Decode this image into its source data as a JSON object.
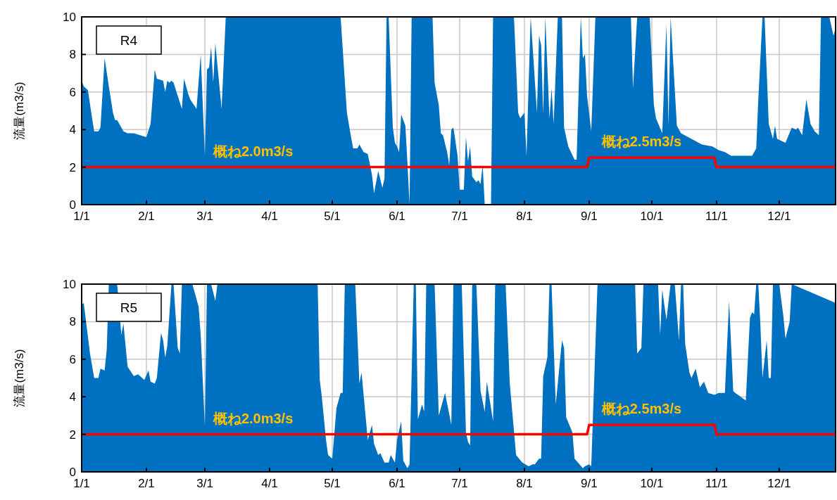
{
  "chart_data": [
    {
      "type": "area",
      "title": "R4",
      "ylabel": "流量(m3/s)",
      "xlim": [
        "--01-01",
        "--12-28"
      ],
      "ylim": [
        0,
        10
      ],
      "yticks": [
        0,
        2,
        4,
        6,
        8,
        10
      ],
      "grid": true,
      "xticks": [
        {
          "value": "--01-01",
          "label": "1/1"
        },
        {
          "value": "--02-01",
          "label": "2/1"
        },
        {
          "value": "--03-01",
          "label": "3/1"
        },
        {
          "value": "--04-01",
          "label": "4/1"
        },
        {
          "value": "--05-01",
          "label": "5/1"
        },
        {
          "value": "--06-01",
          "label": "6/1"
        },
        {
          "value": "--07-01",
          "label": "7/1"
        },
        {
          "value": "--08-01",
          "label": "8/1"
        },
        {
          "value": "--09-01",
          "label": "9/1"
        },
        {
          "value": "--10-01",
          "label": "10/1"
        },
        {
          "value": "--11-01",
          "label": "11/1"
        },
        {
          "value": "--12-01",
          "label": "12/1"
        }
      ],
      "annotations": [
        {
          "text": "概ね2.0m3/s",
          "x": "--03-05",
          "y": 2.0
        },
        {
          "text": "概ね2.5m3/s",
          "x": "--09-07",
          "y": 2.5
        }
      ],
      "series": [
        {
          "color": "#0070c0",
          "x": [
            "--01-01",
            "--01-02",
            "--01-04",
            "--01-06",
            "--01-07",
            "--01-09",
            "--01-10",
            "--01-12",
            "--01-14",
            "--01-16",
            "--01-17",
            "--01-18",
            "--01-21",
            "--01-23",
            "--01-26",
            "--01-29",
            "--02-01",
            "--02-03",
            "--02-05",
            "--02-06",
            "--02-09",
            "--02-10",
            "--02-11",
            "--02-12",
            "--02-13",
            "--02-14",
            "--02-16",
            "--02-18",
            "--02-19",
            "--02-21",
            "--02-22",
            "--02-25",
            "--02-27",
            "--03-01",
            "--03-02",
            "--03-03",
            "--03-04",
            "--03-05",
            "--03-06",
            "--03-09",
            "--03-11",
            "--05-05",
            "--05-08",
            "--05-10",
            "--05-11",
            "--05-13",
            "--05-14",
            "--05-16",
            "--05-18",
            "--05-20",
            "--05-21",
            "--05-23",
            "--05-25",
            "--05-26",
            "--05-27",
            "--05-28",
            "--05-30",
            "--05-31",
            "--06-01",
            "--06-02",
            "--06-03",
            "--06-05",
            "--06-06",
            "--06-07",
            "--06-08",
            "--06-18",
            "--06-19",
            "--06-21",
            "--06-22",
            "--06-23",
            "--06-25",
            "--06-26",
            "--06-27",
            "--06-28",
            "--06-30",
            "--07-01",
            "--07-03",
            "--07-04",
            "--07-05",
            "--07-06",
            "--07-07",
            "--07-09",
            "--07-10",
            "--07-11",
            "--07-12",
            "--07-13",
            "--07-16",
            "--07-17",
            "--07-27",
            "--07-29",
            "--07-30",
            "--08-01",
            "--08-02",
            "--08-04",
            "--08-07",
            "--08-08",
            "--08-09",
            "--08-10",
            "--08-11",
            "--08-13",
            "--08-14",
            "--08-15",
            "--08-17",
            "--08-19",
            "--08-20",
            "--08-22",
            "--08-25",
            "--08-26",
            "--08-28",
            "--08-29",
            "--08-30",
            "--08-31",
            "--09-02",
            "--09-04",
            "--09-21",
            "--09-22",
            "--09-24",
            "--09-30",
            "--10-02",
            "--10-03",
            "--10-06",
            "--10-08",
            "--10-09",
            "--10-10",
            "--10-13",
            "--10-15",
            "--10-20",
            "--10-25",
            "--10-30",
            "--11-02",
            "--11-05",
            "--11-08",
            "--11-14",
            "--11-18",
            "--11-20",
            "--11-21",
            "--11-23",
            "--11-24",
            "--11-26",
            "--11-28",
            "--11-29",
            "--11-30",
            "--12-04",
            "--12-07",
            "--12-09",
            "--12-10",
            "--12-12",
            "--12-14",
            "--12-16",
            "--12-18",
            "--12-20",
            "--12-21",
            "--12-25",
            "--12-27",
            "--12-28"
          ],
          "values": [
            6.6,
            6.3,
            6.1,
            4.6,
            3.9,
            3.9,
            4.1,
            7.8,
            6.3,
            4.9,
            4.5,
            4.5,
            3.9,
            3.8,
            3.8,
            3.7,
            3.6,
            4.3,
            7.2,
            6.7,
            6.6,
            6.0,
            6.6,
            6.5,
            6.6,
            6.5,
            5.8,
            5.1,
            6.7,
            5.9,
            5.6,
            5.1,
            8.0,
            2.6,
            7.2,
            7.3,
            8.4,
            6.5,
            8.6,
            5.1,
            10,
            10,
            4.9,
            3.6,
            3.0,
            3.0,
            3.2,
            2.8,
            2.7,
            1.6,
            0.6,
            1.8,
            0.9,
            1.4,
            10,
            10,
            4.1,
            3.3,
            3.1,
            2.8,
            4.8,
            4.2,
            2.2,
            0,
            10,
            10,
            6.5,
            5.3,
            3.8,
            3.7,
            2.8,
            2.1,
            4.0,
            4.1,
            2.6,
            0.8,
            0.8,
            3.6,
            2.3,
            3.1,
            1.5,
            1.2,
            1.3,
            1.1,
            2.1,
            0,
            0,
            10,
            10,
            4.9,
            4.6,
            4.9,
            2.6,
            10,
            4.9,
            9.0,
            8.5,
            4.8,
            10,
            4.6,
            6.2,
            4.3,
            10,
            10,
            4.1,
            3.1,
            2.4,
            2.4,
            10,
            7.8,
            8.0,
            5.8,
            3.9,
            10,
            10,
            6.2,
            10,
            10,
            5.3,
            4.6,
            3.8,
            9.6,
            4.2,
            10,
            4.2,
            3.8,
            3.5,
            3.2,
            3.1,
            2.9,
            2.8,
            2.6,
            2.6,
            2.6,
            3.0,
            5.6,
            10,
            10,
            4.3,
            3.5,
            4.2,
            3.5,
            3.3,
            4.1,
            4.0,
            4.1,
            3.7,
            5.6,
            4.3,
            3.9,
            3.7,
            10,
            10,
            9.0,
            9.4
          ]
        },
        {
          "type": "line",
          "color": "#ff0000",
          "x": [
            "--01-01",
            "--08-31",
            "--09-01",
            "--10-31",
            "--11-01",
            "--12-28"
          ],
          "values": [
            2.0,
            2.0,
            2.5,
            2.5,
            2.0,
            2.0
          ]
        }
      ]
    },
    {
      "type": "area",
      "title": "R5",
      "ylabel": "流量(m3/s)",
      "xlim": [
        "--01-01",
        "--12-28"
      ],
      "ylim": [
        0,
        10
      ],
      "yticks": [
        0,
        2,
        4,
        6,
        8,
        10
      ],
      "grid": true,
      "xticks": [
        {
          "value": "--01-01",
          "label": "1/1"
        },
        {
          "value": "--02-01",
          "label": "2/1"
        },
        {
          "value": "--03-01",
          "label": "3/1"
        },
        {
          "value": "--04-01",
          "label": "4/1"
        },
        {
          "value": "--05-01",
          "label": "5/1"
        },
        {
          "value": "--06-01",
          "label": "6/1"
        },
        {
          "value": "--07-01",
          "label": "7/1"
        },
        {
          "value": "--08-01",
          "label": "8/1"
        },
        {
          "value": "--09-01",
          "label": "9/1"
        },
        {
          "value": "--10-01",
          "label": "10/1"
        },
        {
          "value": "--11-01",
          "label": "11/1"
        },
        {
          "value": "--12-01",
          "label": "12/1"
        }
      ],
      "annotations": [
        {
          "text": "概ね2.0m3/s",
          "x": "--03-05",
          "y": 2.0
        },
        {
          "text": "概ね2.5m3/s",
          "x": "--09-07",
          "y": 2.5
        }
      ],
      "series": [
        {
          "color": "#0070c0",
          "x": [
            "--01-01",
            "--01-02",
            "--01-05",
            "--01-07",
            "--01-09",
            "--01-10",
            "--01-12",
            "--01-13",
            "--01-14",
            "--01-18",
            "--01-20",
            "--01-21",
            "--01-23",
            "--01-26",
            "--01-28",
            "--01-31",
            "--02-02",
            "--02-03",
            "--02-05",
            "--02-06",
            "--02-08",
            "--02-09",
            "--02-10",
            "--02-11",
            "--02-13",
            "--02-14",
            "--02-16",
            "--02-17",
            "--02-18",
            "--02-23",
            "--02-26",
            "--02-27",
            "--03-01",
            "--03-02",
            "--03-04",
            "--03-06",
            "--03-07",
            "--04-24",
            "--04-25",
            "--04-26",
            "--04-28",
            "--04-29",
            "--05-01",
            "--05-03",
            "--05-05",
            "--05-06",
            "--05-07",
            "--05-12",
            "--05-14",
            "--05-15",
            "--05-18",
            "--05-20",
            "--05-21",
            "--05-23",
            "--05-24",
            "--05-26",
            "--05-28",
            "--05-29",
            "--05-31",
            "--06-01",
            "--06-03",
            "--06-04",
            "--06-06",
            "--06-07",
            "--06-09",
            "--06-10",
            "--06-11",
            "--06-13",
            "--06-14",
            "--06-15",
            "--06-19",
            "--06-21",
            "--06-22",
            "--06-24",
            "--06-27",
            "--06-28",
            "--07-02",
            "--07-04",
            "--07-05",
            "--07-06",
            "--07-07",
            "--07-09",
            "--07-11",
            "--07-13",
            "--07-14",
            "--07-17",
            "--07-18",
            "--07-23",
            "--07-25",
            "--07-28",
            "--07-31",
            "--08-03",
            "--08-05",
            "--08-06",
            "--08-08",
            "--08-09",
            "--08-10",
            "--08-12",
            "--08-13",
            "--08-14",
            "--08-16",
            "--08-19",
            "--08-20",
            "--08-21",
            "--08-24",
            "--08-25",
            "--08-29",
            "--08-30",
            "--09-01",
            "--09-02",
            "--09-05",
            "--09-23",
            "--09-24",
            "--09-26",
            "--09-27",
            "--10-04",
            "--10-05",
            "--10-06",
            "--10-08",
            "--10-10",
            "--10-12",
            "--10-14",
            "--10-15",
            "--10-16",
            "--10-17",
            "--10-19",
            "--10-20",
            "--10-22",
            "--10-24",
            "--10-26",
            "--10-28",
            "--10-31",
            "--11-02",
            "--11-04",
            "--11-05",
            "--11-07",
            "--11-09",
            "--11-10",
            "--11-15",
            "--11-17",
            "--11-18",
            "--11-19",
            "--11-20",
            "--11-21",
            "--11-22",
            "--11-23",
            "--11-25",
            "--11-26",
            "--11-27",
            "--11-28",
            "--12-01",
            "--12-03",
            "--12-04",
            "--12-06",
            "--12-07",
            "--12-28"
          ],
          "values": [
            8.9,
            9.0,
            6.3,
            5.0,
            5.0,
            5.5,
            5.4,
            6.5,
            10,
            10,
            7.3,
            7.9,
            5.6,
            5.1,
            5.2,
            4.9,
            5.4,
            4.8,
            4.7,
            5.0,
            7.4,
            7.0,
            6.1,
            6.7,
            10,
            10,
            6.6,
            6.3,
            10,
            10,
            8.8,
            7.3,
            2.4,
            10,
            10,
            9.1,
            10,
            10,
            4.9,
            4.0,
            1.7,
            0.9,
            0.7,
            3.4,
            4.2,
            4.2,
            10,
            10,
            4.7,
            5.3,
            1.7,
            2.5,
            1.5,
            0.9,
            1.0,
            0.5,
            0.5,
            0.9,
            0.5,
            1.7,
            2.7,
            0.6,
            0.2,
            0.4,
            10,
            10,
            2.8,
            3.6,
            3.2,
            10,
            10,
            3.0,
            3.4,
            4.2,
            2.5,
            10,
            10,
            2.1,
            1.6,
            1.4,
            10,
            10,
            4.3,
            3.2,
            4.8,
            2.7,
            10,
            10,
            4.7,
            0.9,
            0.5,
            0.3,
            0.4,
            0.4,
            0.7,
            0.7,
            5.1,
            6.1,
            10,
            10,
            3.6,
            7.0,
            6.6,
            2.9,
            2.1,
            0.7,
            0.2,
            0.3,
            0.4,
            0.3,
            10,
            10,
            6.3,
            6.6,
            10,
            10,
            7.3,
            9.7,
            8.1,
            10,
            10,
            7.0,
            10,
            10,
            6.8,
            5.3,
            5.0,
            5.5,
            4.5,
            4.8,
            4.2,
            4.1,
            4.2,
            4.2,
            4.2,
            9.1,
            4.3,
            4.2,
            3.8,
            8.2,
            8.5,
            8.4,
            10,
            10,
            7.8,
            5.0,
            7.0,
            5.0,
            5.0,
            10,
            10,
            8.3,
            7.1,
            8.0,
            10,
            9.0
          ]
        },
        {
          "type": "line",
          "color": "#ff0000",
          "x": [
            "--01-01",
            "--08-31",
            "--09-01",
            "--10-31",
            "--11-01",
            "--12-28"
          ],
          "values": [
            2.0,
            2.0,
            2.5,
            2.5,
            2.0,
            2.0
          ]
        }
      ]
    }
  ]
}
